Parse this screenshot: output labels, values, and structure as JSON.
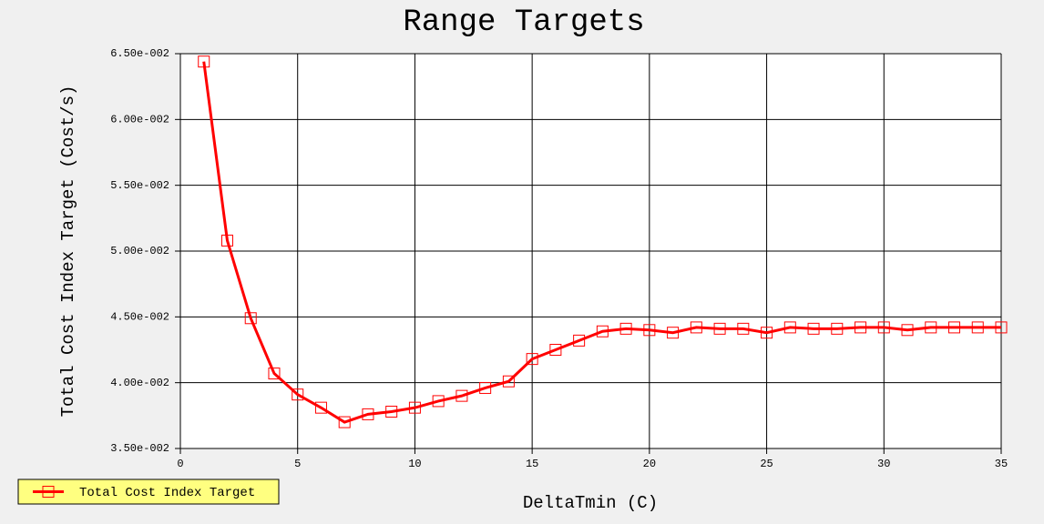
{
  "chart_data": {
    "type": "line",
    "title": "Range Targets",
    "x_label": "DeltaTmin (C)",
    "y_label": "Total Cost Index Target (Cost/s)",
    "x": [
      1,
      2,
      3,
      4,
      5,
      6,
      7,
      8,
      9,
      10,
      11,
      12,
      13,
      14,
      15,
      16,
      17,
      18,
      19,
      20,
      21,
      22,
      23,
      24,
      25,
      26,
      27,
      28,
      29,
      30,
      31,
      32,
      33,
      34,
      35
    ],
    "series": [
      {
        "name": "Total Cost Index Target",
        "color": "#ff0000",
        "values": [
          0.0644,
          0.0508,
          0.0449,
          0.0407,
          0.0391,
          0.0381,
          0.037,
          0.0376,
          0.0378,
          0.0381,
          0.0386,
          0.039,
          0.0396,
          0.0401,
          0.0418,
          0.0425,
          0.0432,
          0.0439,
          0.0441,
          0.044,
          0.0438,
          0.0442,
          0.0441,
          0.0441,
          0.0438,
          0.0442,
          0.0441,
          0.0441,
          0.0442,
          0.0442,
          0.044,
          0.0442,
          0.0442,
          0.0442,
          0.0442
        ]
      }
    ],
    "xlim": [
      0,
      35
    ],
    "xticks": [
      0,
      5,
      10,
      15,
      20,
      25,
      30,
      35
    ],
    "ylim": [
      0.035,
      0.065
    ],
    "yticks": [
      {
        "value": 0.035,
        "label": "3.50e-002"
      },
      {
        "value": 0.04,
        "label": "4.00e-002"
      },
      {
        "value": 0.045,
        "label": "4.50e-002"
      },
      {
        "value": 0.05,
        "label": "5.00e-002"
      },
      {
        "value": 0.055,
        "label": "5.50e-002"
      },
      {
        "value": 0.06,
        "label": "6.00e-002"
      },
      {
        "value": 0.065,
        "label": "6.50e-002"
      }
    ],
    "grid": true,
    "legend": "bottom-left"
  }
}
